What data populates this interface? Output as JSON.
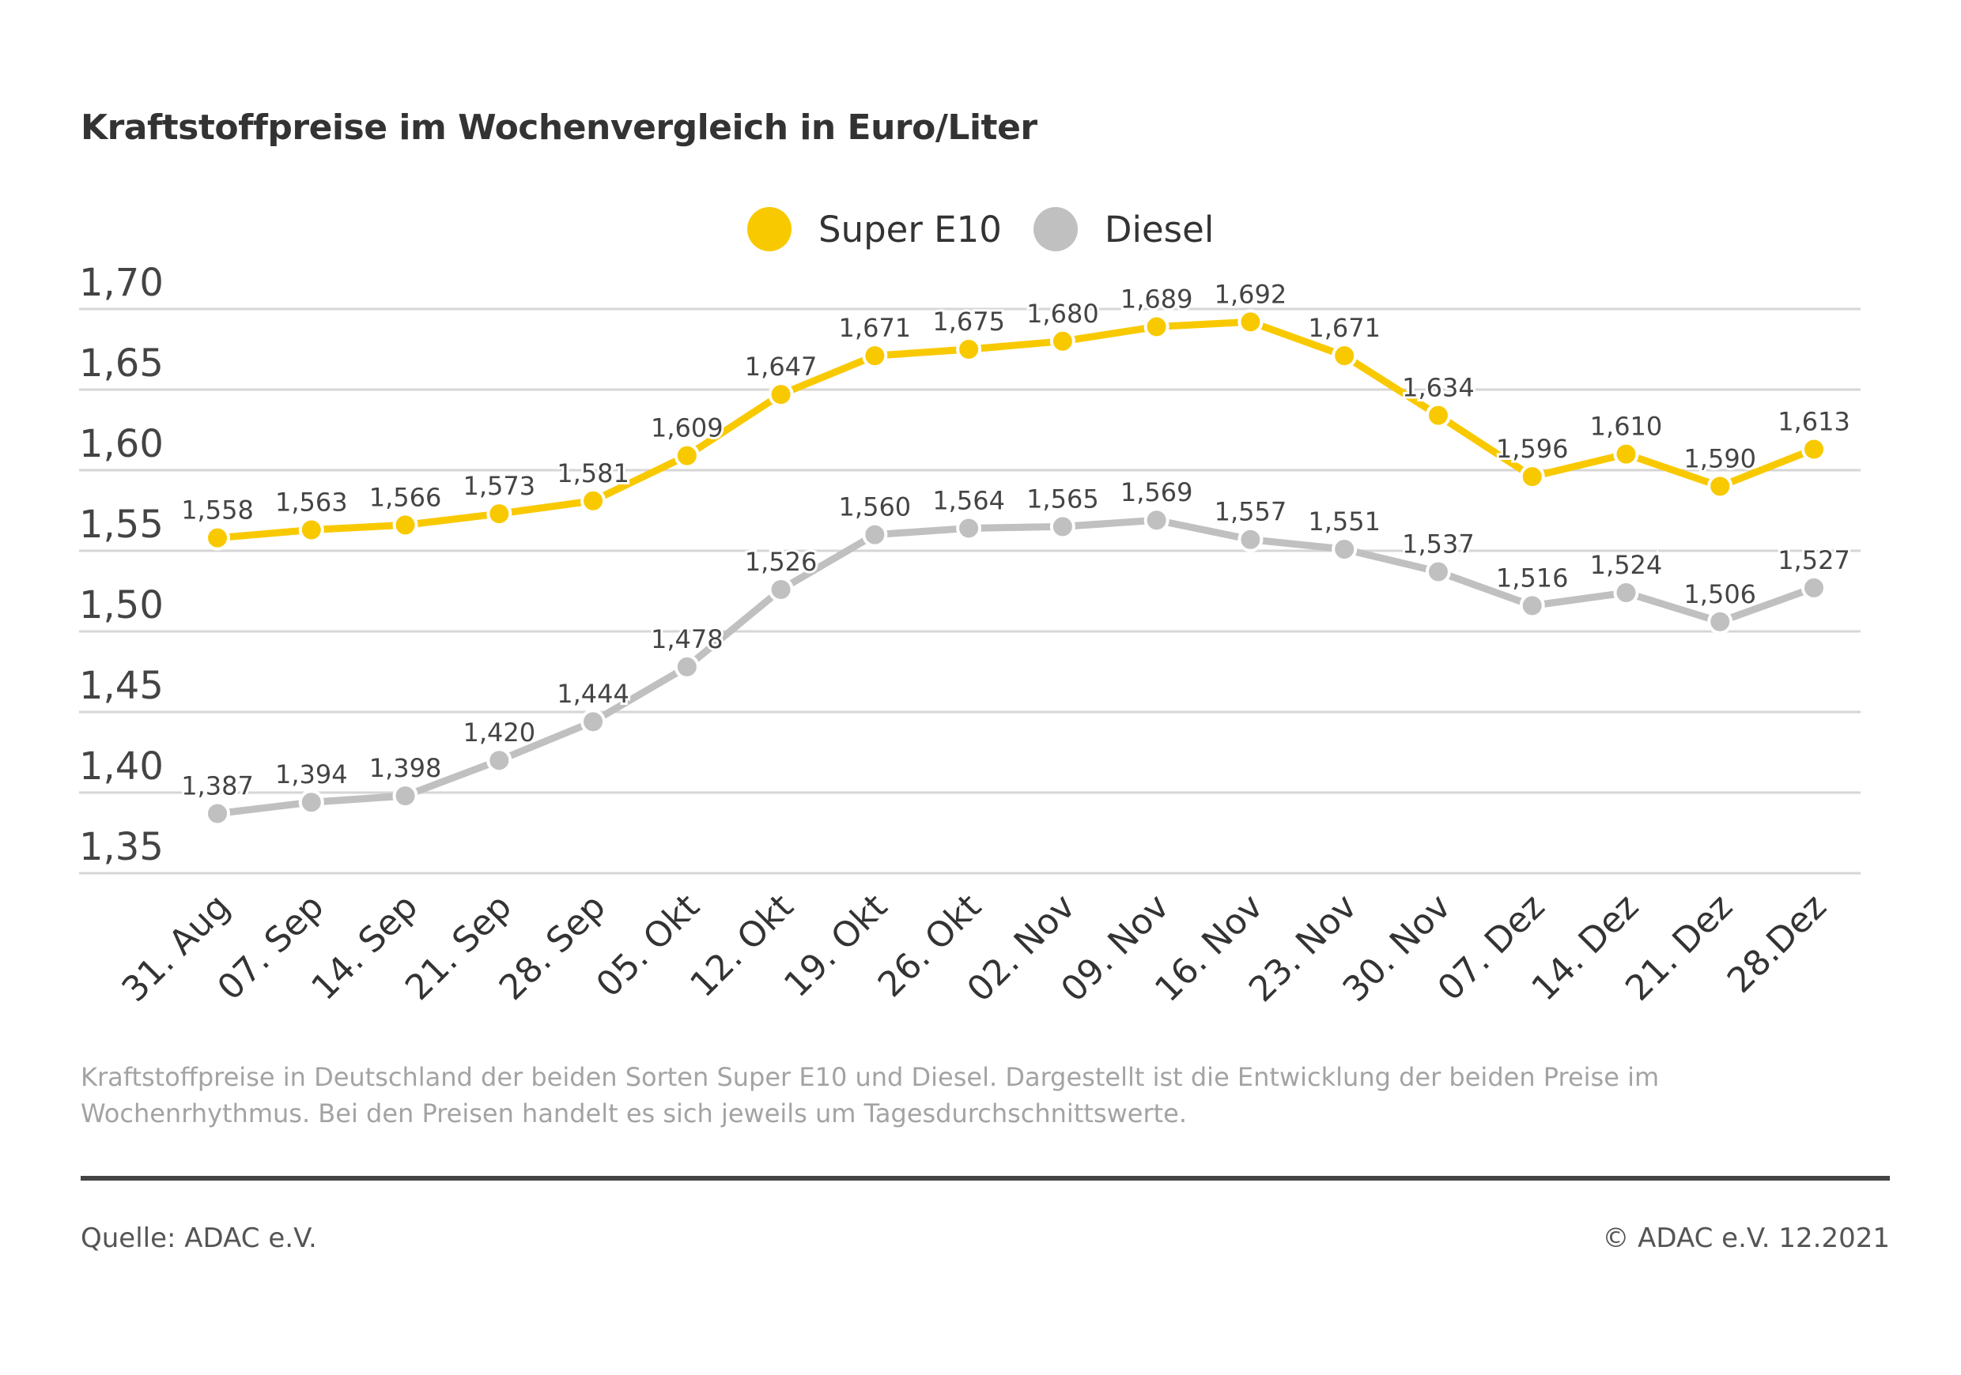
{
  "chart_data": {
    "type": "line",
    "title": "Kraftstoffpreise im Wochenvergleich in Euro/Liter",
    "categories": [
      "31. Aug",
      "07. Sep",
      "14. Sep",
      "21. Sep",
      "28. Sep",
      "05. Okt",
      "12. Okt",
      "19. Okt",
      "26. Okt",
      "02. Nov",
      "09. Nov",
      "16. Nov",
      "23. Nov",
      "30. Nov",
      "07. Dez",
      "14. Dez",
      "21. Dez",
      "28.Dez"
    ],
    "series": [
      {
        "name": "Super E10",
        "color": "#f9c900",
        "values": [
          1.558,
          1.563,
          1.566,
          1.573,
          1.581,
          1.609,
          1.647,
          1.671,
          1.675,
          1.68,
          1.689,
          1.692,
          1.671,
          1.634,
          1.596,
          1.61,
          1.59,
          1.613
        ],
        "labels": [
          "1,558",
          "1,563",
          "1,566",
          "1,573",
          "1,581",
          "1,609",
          "1,647",
          "1,671",
          "1,675",
          "1,680",
          "1,689",
          "1,692",
          "1,671",
          "1,634",
          "1,596",
          "1,610",
          "1,590",
          "1,613"
        ]
      },
      {
        "name": "Diesel",
        "color": "#c0c0c0",
        "values": [
          1.387,
          1.394,
          1.398,
          1.42,
          1.444,
          1.478,
          1.526,
          1.56,
          1.564,
          1.565,
          1.569,
          1.557,
          1.551,
          1.537,
          1.516,
          1.524,
          1.506,
          1.527
        ],
        "labels": [
          "1,387",
          "1,394",
          "1,398",
          "1,420",
          "1,444",
          "1,478",
          "1,526",
          "1,560",
          "1,564",
          "1,565",
          "1,569",
          "1,557",
          "1,551",
          "1,537",
          "1,516",
          "1,524",
          "1,506",
          "1,527"
        ]
      }
    ],
    "ylim": [
      1.35,
      1.7
    ],
    "yticks": [
      1.7,
      1.65,
      1.6,
      1.55,
      1.5,
      1.45,
      1.4,
      1.35
    ],
    "ytick_labels": [
      "1,70",
      "1,65",
      "1,60",
      "1,55",
      "1,50",
      "1,45",
      "1,40",
      "1,35"
    ],
    "grid": "horizontal",
    "legend_position": "top-center"
  },
  "note": "Kraftstoffpreise in Deutschland der beiden Sorten Super E10 und Diesel. Dargestellt ist die Entwicklung der beiden Preise im Wochenrhythmus. Bei den Preisen handelt es sich jeweils um Tagesdurchschnittswerte.",
  "footer": {
    "source": "Quelle: ADAC e.V.",
    "copyright": "© ADAC e.V. 12.2021"
  }
}
